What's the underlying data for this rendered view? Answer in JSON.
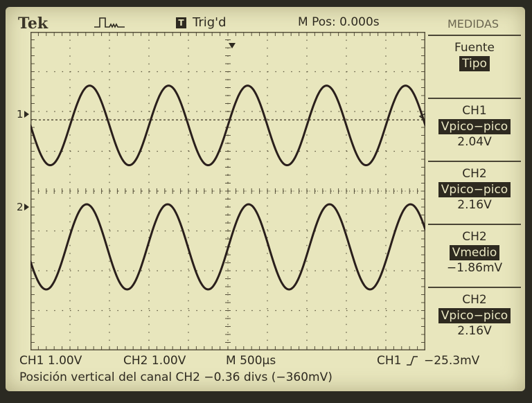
{
  "header": {
    "brand": "Tek",
    "trigger_badge": "T",
    "trigger_status": "Trig'd",
    "main_position": "M Pos: 0.000s",
    "menu_title": "MEDIDAS"
  },
  "markers": {
    "ch1": "1",
    "ch2": "2"
  },
  "side_menu": [
    {
      "label": "Fuente",
      "selected": "Tipo",
      "value": ""
    },
    {
      "label": "CH1",
      "selected": "Vpico−pico",
      "value": "2.04V"
    },
    {
      "label": "CH2",
      "selected": "Vpico−pico",
      "value": "2.16V"
    },
    {
      "label": "CH2",
      "selected": "Vmedio",
      "value": "−1.86mV"
    },
    {
      "label": "CH2",
      "selected": "Vpico−pico",
      "value": "2.16V"
    }
  ],
  "status": {
    "ch1_scale": "CH1 1.00V",
    "ch2_scale": "CH2 1.00V",
    "timebase": "M 500µs",
    "trigger_source": "CH1",
    "trigger_level": "−25.3mV",
    "message": "Posición vertical del canal CH2 −0.36 divs (−360mV)"
  },
  "waveforms": {
    "colors": {
      "trace": "#2a1f1c",
      "grid": "#57513c"
    },
    "ch1": {
      "center_div": 2.35,
      "amplitude_div": 1.0,
      "period_div": 2.0,
      "phase_deg": 180
    },
    "ch2": {
      "center_div": 5.4,
      "amplitude_div": 1.07,
      "period_div": 2.05,
      "phase_deg": 200
    }
  }
}
